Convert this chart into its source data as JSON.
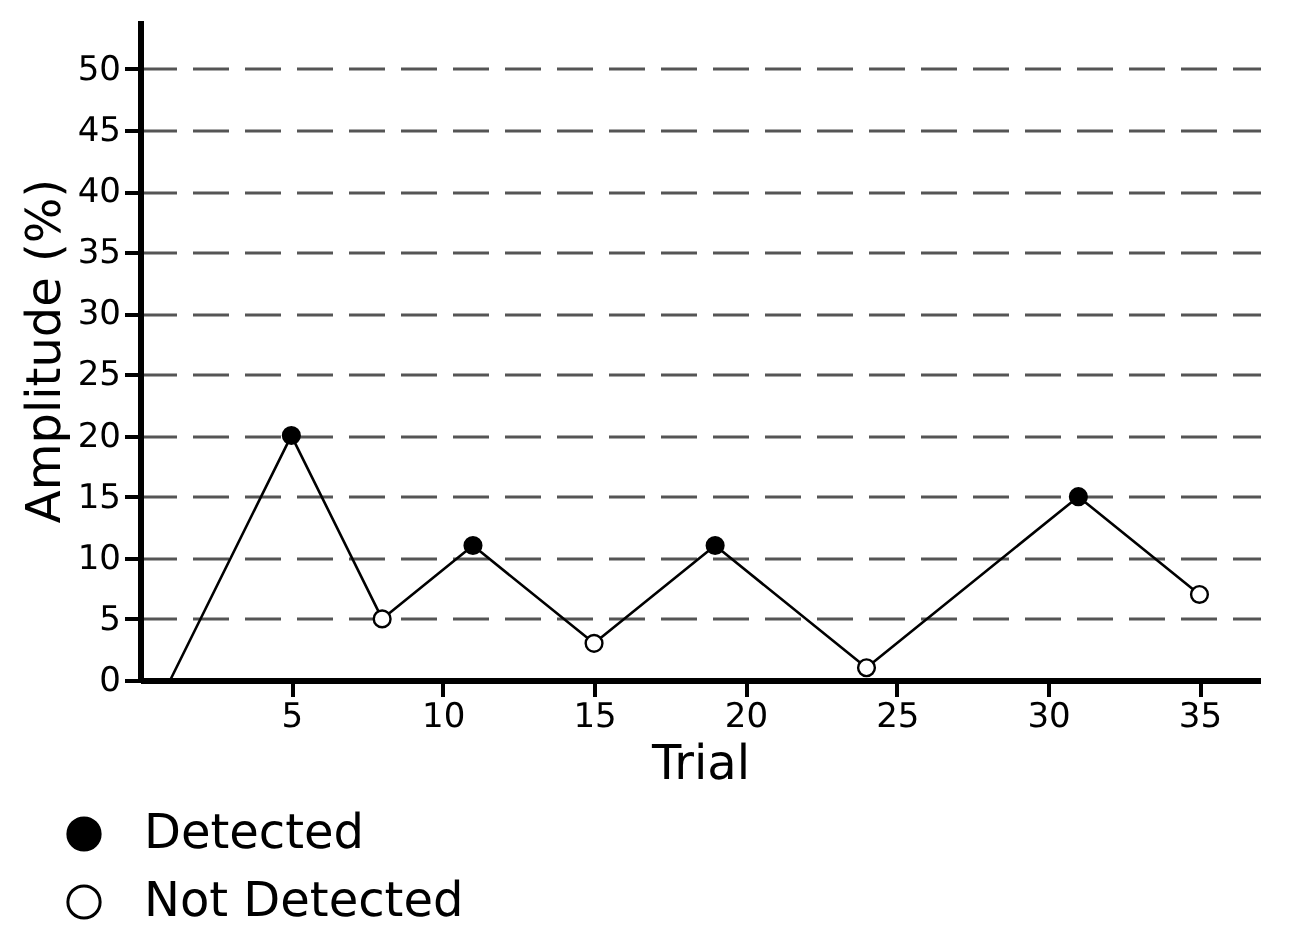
{
  "chart_data": {
    "type": "line",
    "xlabel": "Trial",
    "ylabel": "Amplitude (%)",
    "xlim": [
      0,
      37
    ],
    "ylim": [
      0,
      54
    ],
    "xticks": [
      5,
      10,
      15,
      20,
      25,
      30,
      35
    ],
    "yticks": [
      0,
      5,
      10,
      15,
      20,
      25,
      30,
      35,
      40,
      45,
      50
    ],
    "grid": "y",
    "legend": "bottom left",
    "line_style": "solid",
    "series": [
      {
        "marker": "none",
        "color": "#000000",
        "x": [
          1,
          5,
          8,
          11,
          15,
          19,
          24,
          31,
          35
        ],
        "values": [
          0,
          20,
          5,
          11,
          3,
          11,
          1,
          15,
          7
        ]
      },
      {
        "type": "scatter",
        "marker": "circle",
        "name": "Detected",
        "color": "#000000",
        "x": [
          5,
          11,
          19,
          31
        ],
        "values": [
          20,
          11,
          11,
          15
        ]
      },
      {
        "type": "scatter",
        "marker": "circle",
        "name": "Not Detected",
        "color": "#ffffff",
        "x": [
          8,
          15,
          24,
          35
        ],
        "values": [
          5,
          3,
          1,
          7
        ]
      }
    ]
  }
}
